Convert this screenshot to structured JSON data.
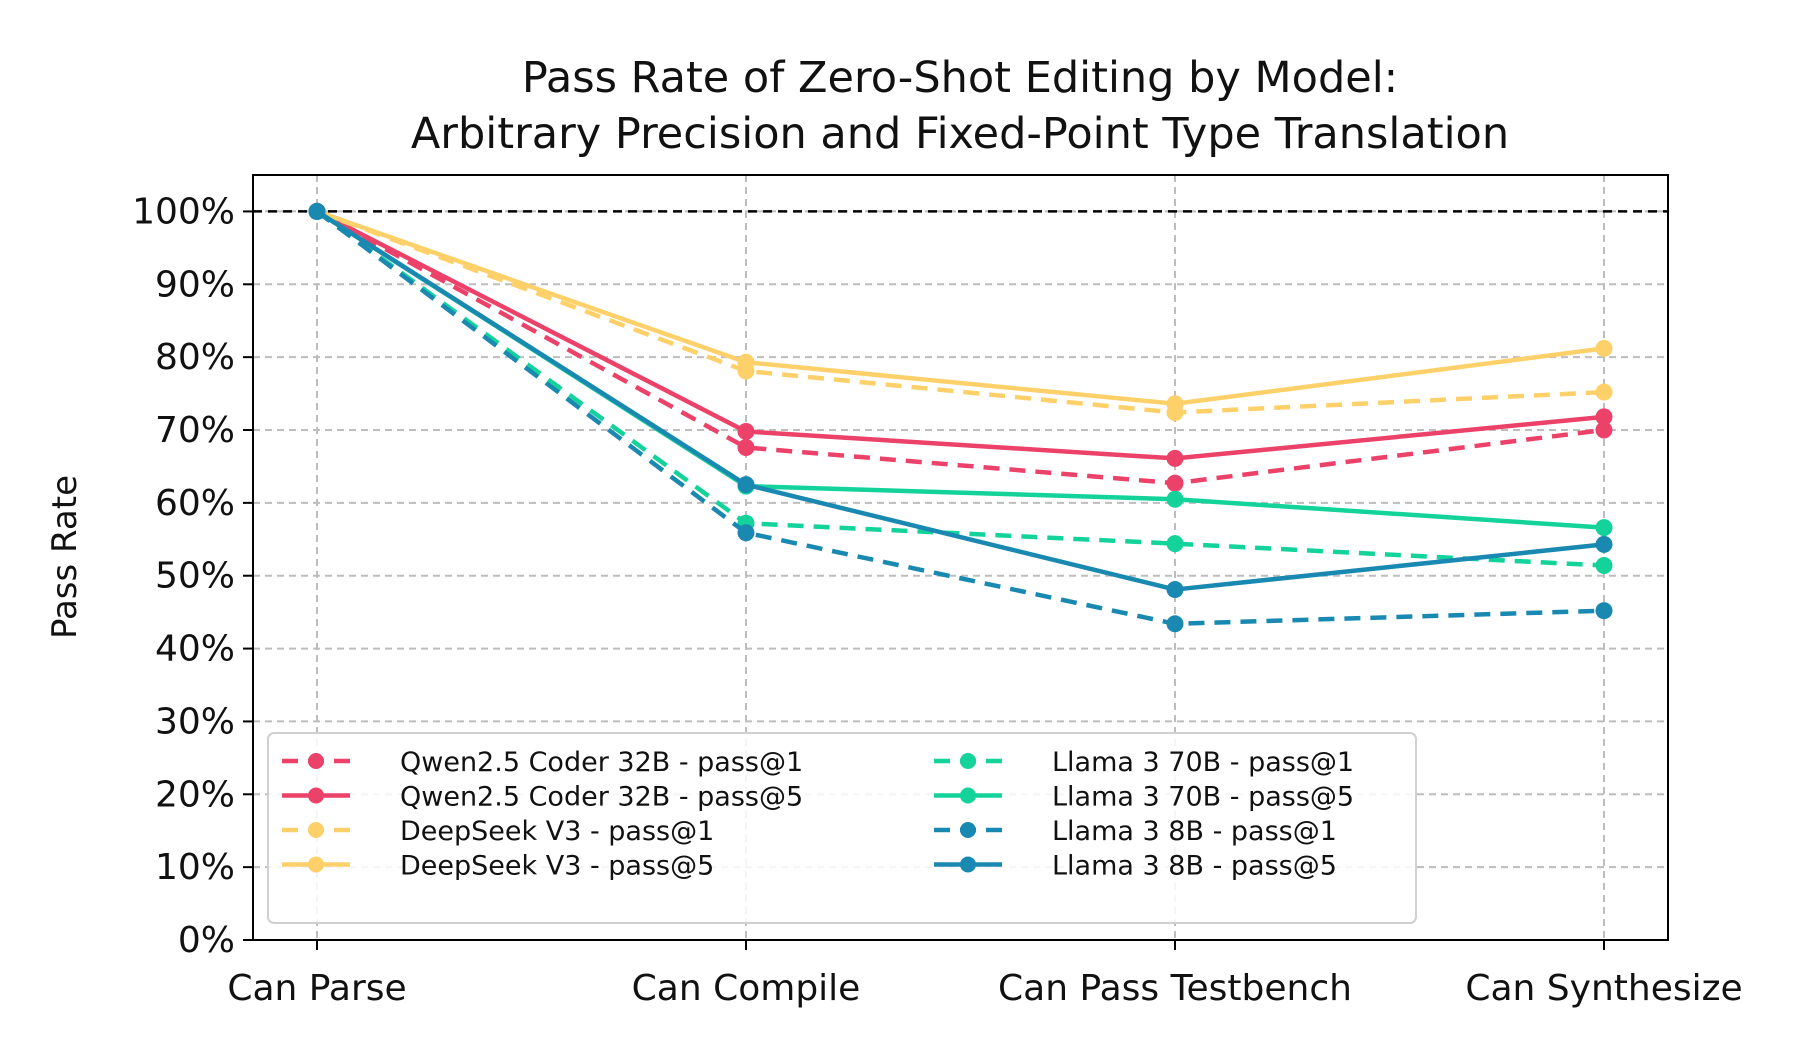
{
  "chart_data": {
    "type": "line",
    "title_line1": "Pass Rate of Zero-Shot Editing by Model:",
    "title_line2": "Arbitrary Precision and Fixed-Point Type Translation",
    "xlabel": "",
    "ylabel": "Pass Rate",
    "categories": [
      "Can Parse",
      "Can Compile",
      "Can Pass Testbench",
      "Can Synthesize"
    ],
    "ylim": [
      0,
      105
    ],
    "yticks": [
      0,
      10,
      20,
      30,
      40,
      50,
      60,
      70,
      80,
      90,
      100
    ],
    "ytick_labels": [
      "0%",
      "10%",
      "20%",
      "30%",
      "40%",
      "50%",
      "60%",
      "70%",
      "80%",
      "90%",
      "100%"
    ],
    "reference_line": 100,
    "grid": true,
    "legend_position": "lower-left",
    "series": [
      {
        "name": "Qwen2.5 Coder 32B - pass@1",
        "color": "#ec4169",
        "dashed": true,
        "values": [
          100,
          67.6,
          62.7,
          70.0
        ]
      },
      {
        "name": "Qwen2.5 Coder 32B - pass@5",
        "color": "#ec4169",
        "dashed": false,
        "values": [
          100,
          69.8,
          66.1,
          71.8
        ]
      },
      {
        "name": "DeepSeek V3 - pass@1",
        "color": "#fdd06a",
        "dashed": true,
        "values": [
          100,
          78.1,
          72.4,
          75.2
        ]
      },
      {
        "name": "DeepSeek V3 - pass@5",
        "color": "#fdd06a",
        "dashed": false,
        "values": [
          100,
          79.3,
          73.6,
          81.2
        ]
      },
      {
        "name": "Llama 3 70B - pass@1",
        "color": "#13d39b",
        "dashed": true,
        "values": [
          100,
          57.2,
          54.4,
          51.4
        ]
      },
      {
        "name": "Llama 3 70B - pass@5",
        "color": "#13d39b",
        "dashed": false,
        "values": [
          100,
          62.3,
          60.5,
          56.6
        ]
      },
      {
        "name": "Llama 3 8B - pass@1",
        "color": "#1a89b1",
        "dashed": true,
        "values": [
          100,
          55.9,
          43.4,
          45.2
        ]
      },
      {
        "name": "Llama 3 8B - pass@5",
        "color": "#1a89b1",
        "dashed": false,
        "values": [
          100,
          62.5,
          48.1,
          54.3
        ]
      }
    ]
  }
}
